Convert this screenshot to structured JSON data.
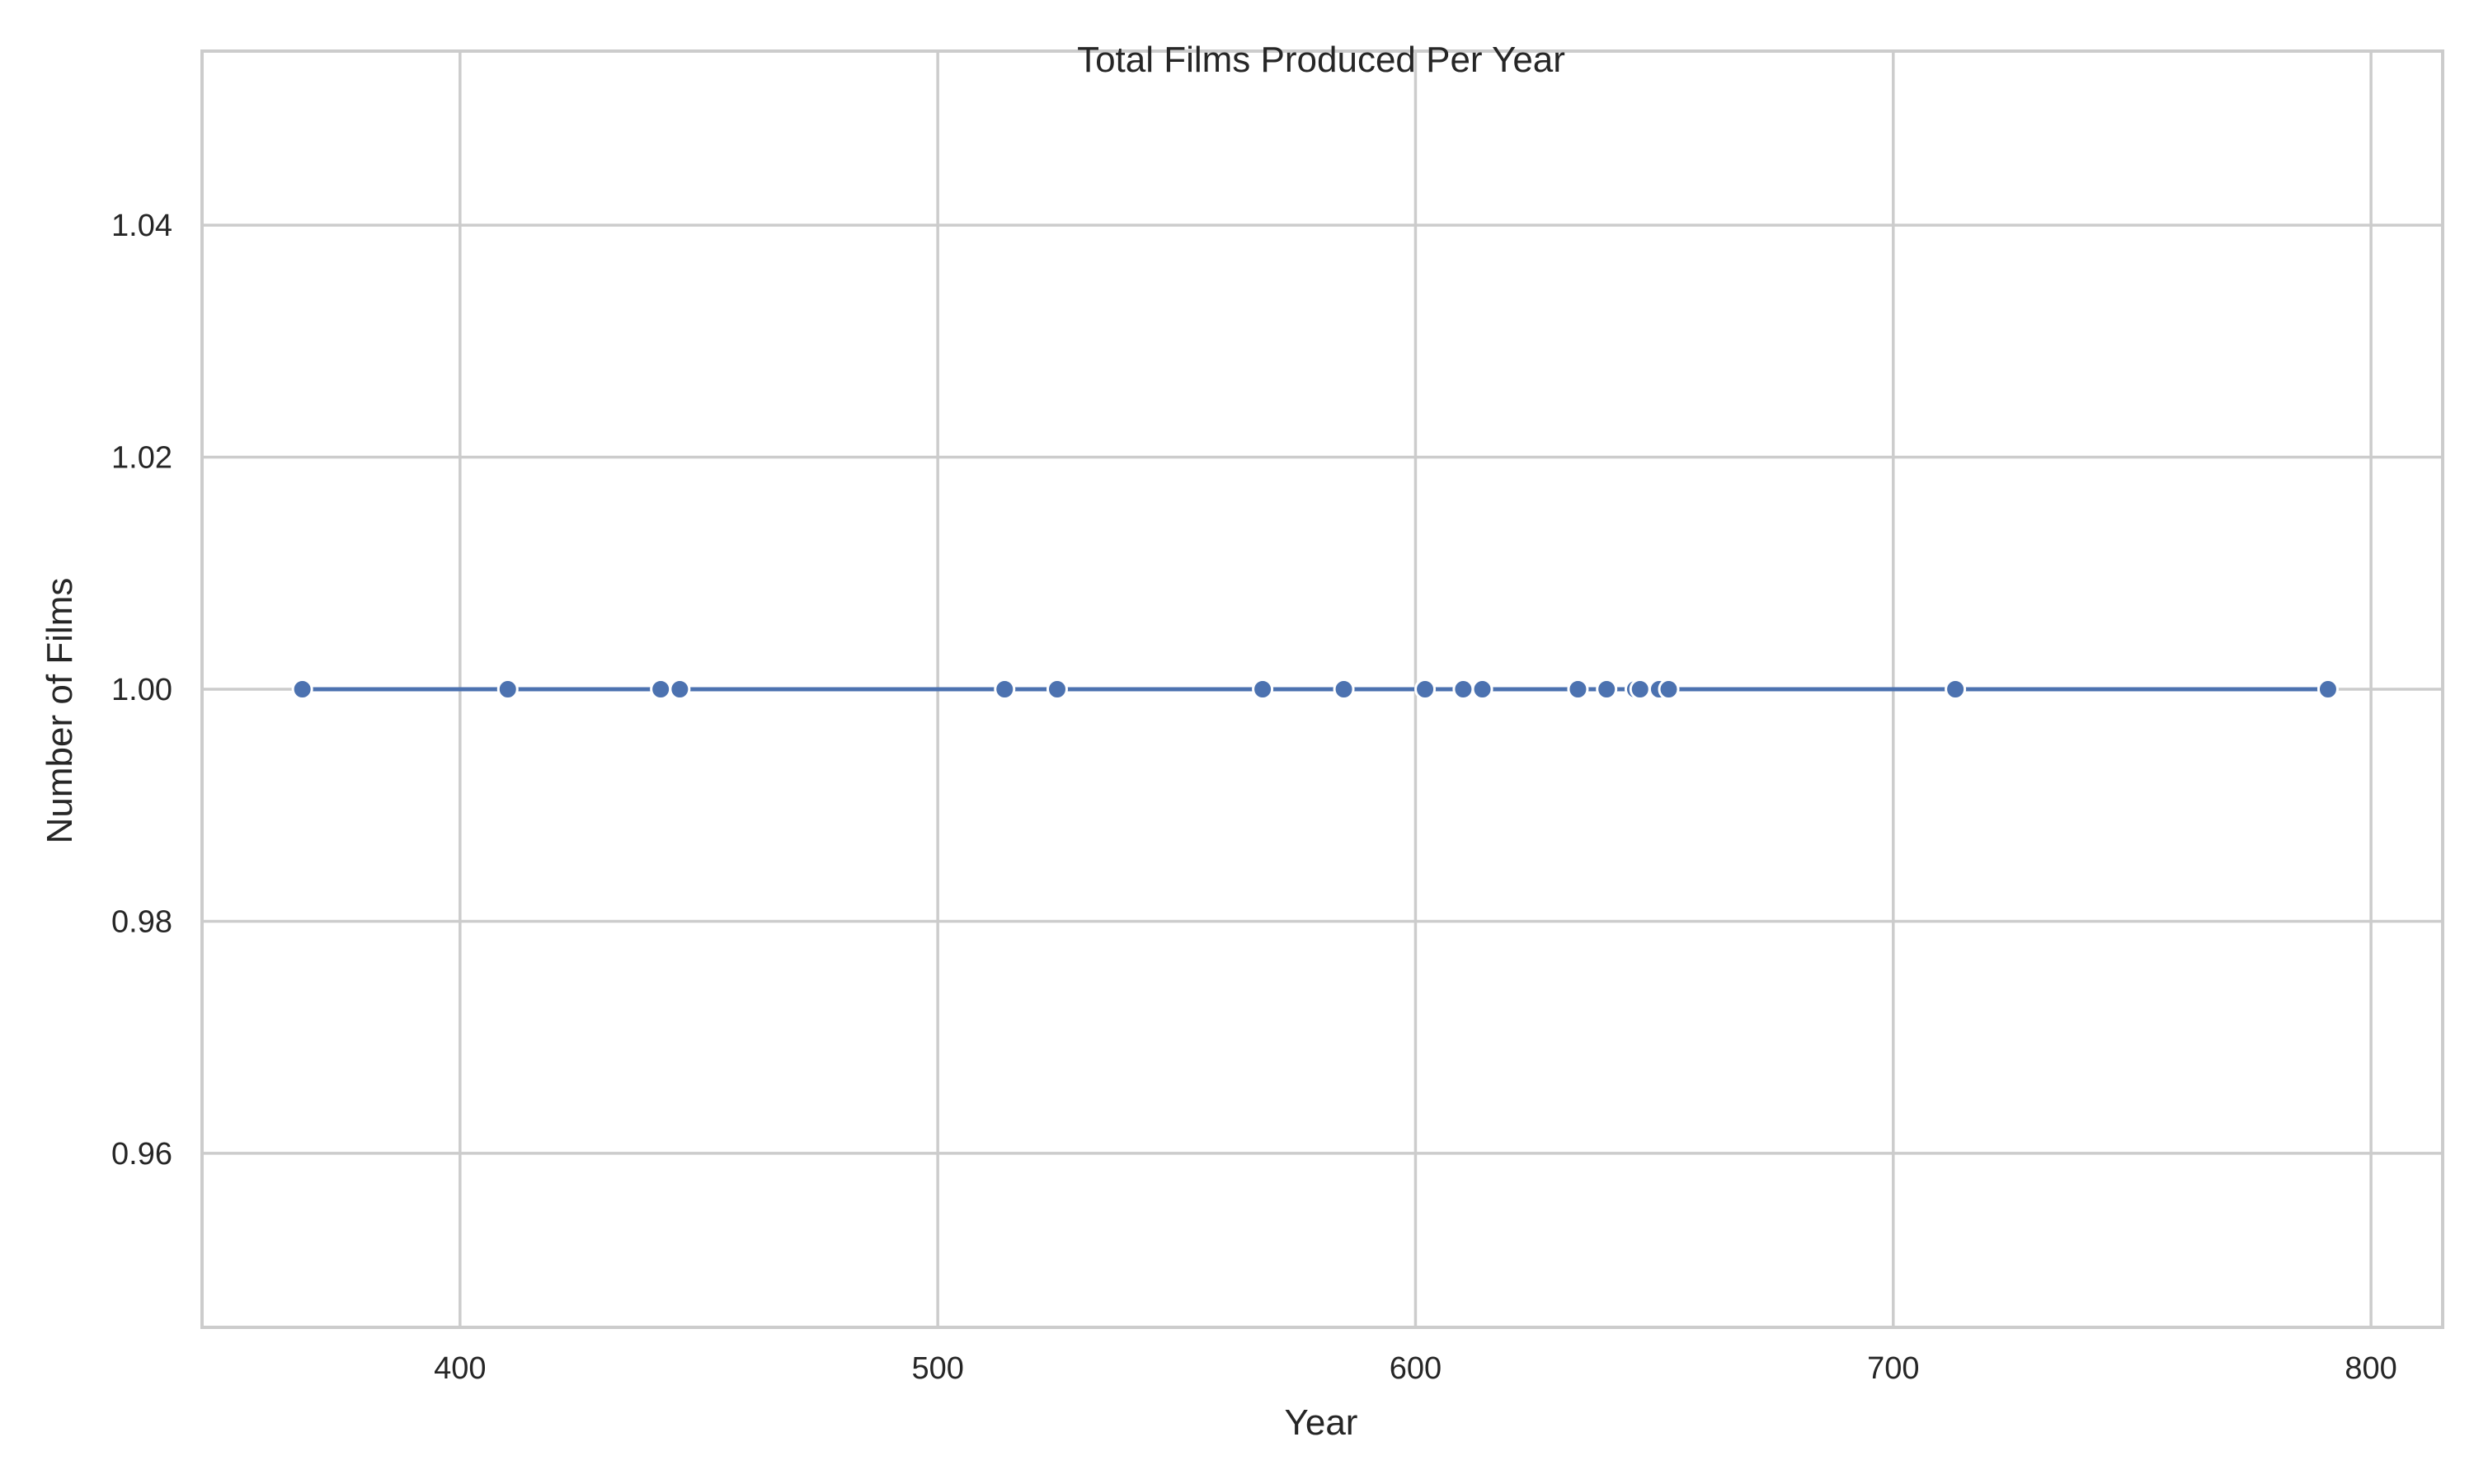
{
  "chart_data": {
    "type": "line",
    "title": "Total Films Produced Per Year",
    "xlabel": "Year",
    "ylabel": "Number of Films",
    "xlim": [
      346,
      815
    ],
    "ylim": [
      0.945,
      1.055
    ],
    "xticks": [
      400,
      500,
      600,
      700,
      800
    ],
    "yticks": [
      0.96,
      0.98,
      1.0,
      1.02,
      1.04
    ],
    "xtick_labels": [
      "400",
      "500",
      "600",
      "700",
      "800"
    ],
    "ytick_labels": [
      "0.96",
      "0.98",
      "1.00",
      "1.02",
      "1.04"
    ],
    "grid": true,
    "marker": "circle",
    "colors": {
      "line": "#4c72b0",
      "grid": "#cccccc",
      "spine": "#cccccc",
      "text": "#262626"
    },
    "series": [
      {
        "x": [
          367,
          410,
          442,
          446,
          514,
          525,
          568,
          585,
          602,
          610,
          614,
          634,
          640,
          646,
          647,
          651,
          653,
          713,
          791
        ],
        "y": [
          1,
          1,
          1,
          1,
          1,
          1,
          1,
          1,
          1,
          1,
          1,
          1,
          1,
          1,
          1,
          1,
          1,
          1,
          1
        ]
      }
    ]
  }
}
